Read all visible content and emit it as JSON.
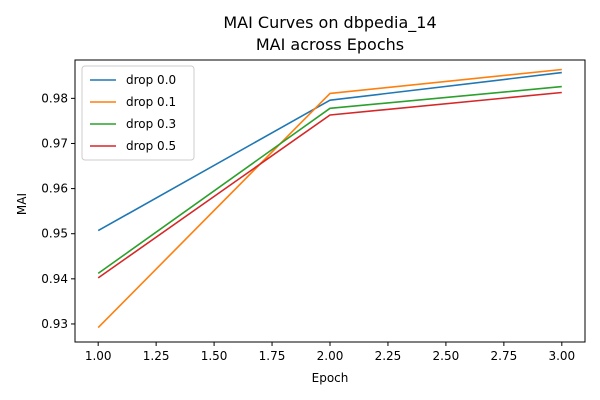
{
  "chart_data": {
    "type": "line",
    "title": "MAI Curves on dbpedia_14",
    "subtitle": "MAI across Epochs",
    "xlabel": "Epoch",
    "ylabel": "MAI",
    "xlim": [
      0.9,
      3.1
    ],
    "ylim": [
      0.926,
      0.9885
    ],
    "x_ticks": [
      1.0,
      1.25,
      1.5,
      1.75,
      2.0,
      2.25,
      2.5,
      2.75,
      3.0
    ],
    "x_tick_labels": [
      "1.00",
      "1.25",
      "1.50",
      "1.75",
      "2.00",
      "2.25",
      "2.50",
      "2.75",
      "3.00"
    ],
    "y_ticks": [
      0.93,
      0.94,
      0.95,
      0.96,
      0.97,
      0.98
    ],
    "y_tick_labels": [
      "0.93",
      "0.94",
      "0.95",
      "0.96",
      "0.97",
      "0.98"
    ],
    "grid": false,
    "legend_position": "top-left",
    "x": [
      1,
      2,
      3
    ],
    "series": [
      {
        "name": "drop 0.0",
        "color": "#1f77b4",
        "values": [
          0.9507,
          0.9796,
          0.9857
        ]
      },
      {
        "name": "drop 0.1",
        "color": "#ff7f0e",
        "values": [
          0.9292,
          0.9811,
          0.9864
        ]
      },
      {
        "name": "drop 0.3",
        "color": "#2ca02c",
        "values": [
          0.9412,
          0.9778,
          0.9826
        ]
      },
      {
        "name": "drop 0.5",
        "color": "#d62728",
        "values": [
          0.9402,
          0.9763,
          0.9813
        ]
      }
    ]
  }
}
